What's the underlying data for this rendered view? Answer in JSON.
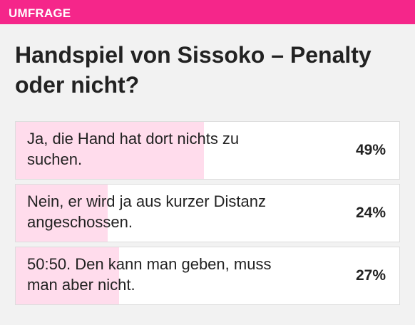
{
  "poll": {
    "tag": "UMFRAGE",
    "title": "Handspiel von Sissoko – Penalty oder nicht?",
    "accent_color": "#f5268a",
    "fill_color": "#ffdcec",
    "options": [
      {
        "label": "Ja, die Hand hat dort nichts zu suchen.",
        "percent_label": "49%",
        "percent": 49
      },
      {
        "label": "Nein, er wird ja aus kurzer Distanz angeschossen.",
        "percent_label": "24%",
        "percent": 24
      },
      {
        "label": "50:50. Den kann man geben, muss man aber nicht.",
        "percent_label": "27%",
        "percent": 27
      }
    ]
  }
}
